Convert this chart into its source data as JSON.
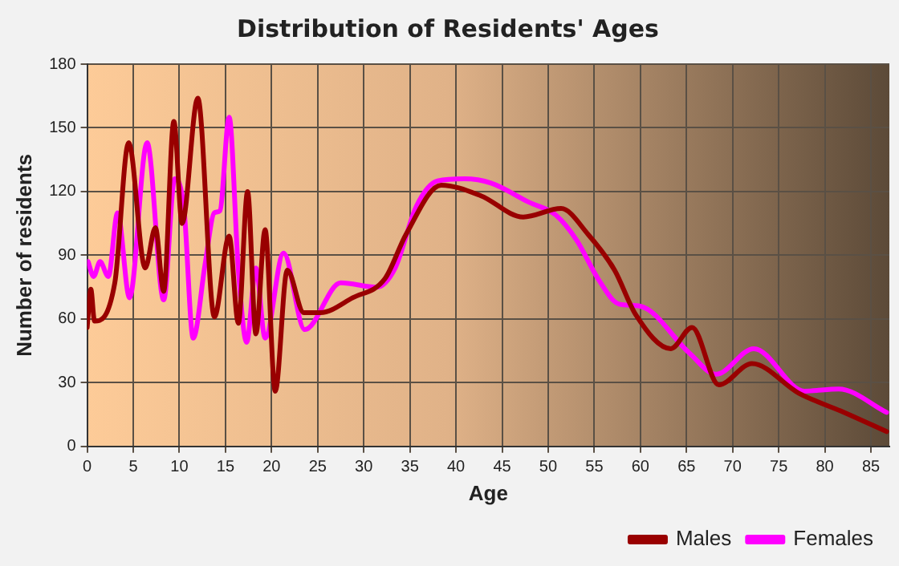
{
  "chart_data": {
    "type": "line",
    "title": "Distribution of Residents' Ages",
    "xlabel": "Age",
    "ylabel": "Number of residents",
    "xlim": [
      0,
      87
    ],
    "xticks": [
      0,
      5,
      10,
      15,
      20,
      25,
      30,
      35,
      40,
      45,
      50,
      55,
      60,
      65,
      70,
      75,
      80,
      85
    ],
    "ylim": [
      0,
      180
    ],
    "yticks": [
      0,
      30,
      60,
      90,
      120,
      150,
      180
    ],
    "grid": true,
    "legend": "bottom right",
    "marker": "none",
    "line_style": "solid",
    "series": [
      {
        "name": "Males",
        "color": "#990000",
        "x": [
          0,
          0.4,
          0.8,
          3,
          4.5,
          6.3,
          7.4,
          8.3,
          9.4,
          10.3,
          12,
          13.8,
          15.4,
          16.4,
          17.4,
          18.3,
          19.3,
          20.4,
          21.7,
          23.5,
          25.3,
          28.8,
          32.3,
          34.6,
          38.4,
          42.7,
          47.3,
          51.4,
          54.3,
          57.2,
          59.5,
          63.3,
          65.6,
          68.5,
          72.1,
          77.2,
          82.1,
          86.7
        ],
        "values": [
          56,
          74,
          59,
          77,
          143,
          84,
          103,
          73,
          153,
          105,
          164,
          61,
          99,
          58,
          120,
          53,
          102,
          26,
          83,
          63,
          63,
          70,
          79,
          100,
          123,
          118,
          108,
          112,
          100,
          83,
          62,
          46,
          56,
          29,
          39,
          25,
          16,
          7
        ]
      },
      {
        "name": "Females",
        "color": "#ff00ff",
        "x": [
          0.1,
          0.7,
          1.4,
          2.3,
          3.3,
          4.6,
          6.5,
          8.3,
          9.5,
          10.5,
          11.5,
          12.8,
          13.8,
          14.4,
          15.4,
          16.4,
          17.3,
          18.3,
          19.3,
          21.3,
          23.6,
          27.5,
          31.4,
          33.4,
          35.7,
          38,
          40.9,
          43.8,
          47.9,
          50.8,
          53.1,
          55.4,
          57.7,
          60,
          65.3,
          68.2,
          72.3,
          77.8,
          81.5,
          86.7
        ],
        "values": [
          87,
          80,
          87,
          80,
          110,
          70,
          143,
          69,
          126,
          112,
          51,
          86,
          110,
          111,
          155,
          83,
          49,
          84,
          51,
          91,
          55,
          77,
          75,
          84,
          113,
          125,
          126,
          124,
          115,
          109,
          97,
          79,
          67,
          66,
          44,
          34,
          46,
          26,
          27,
          16
        ]
      }
    ]
  }
}
